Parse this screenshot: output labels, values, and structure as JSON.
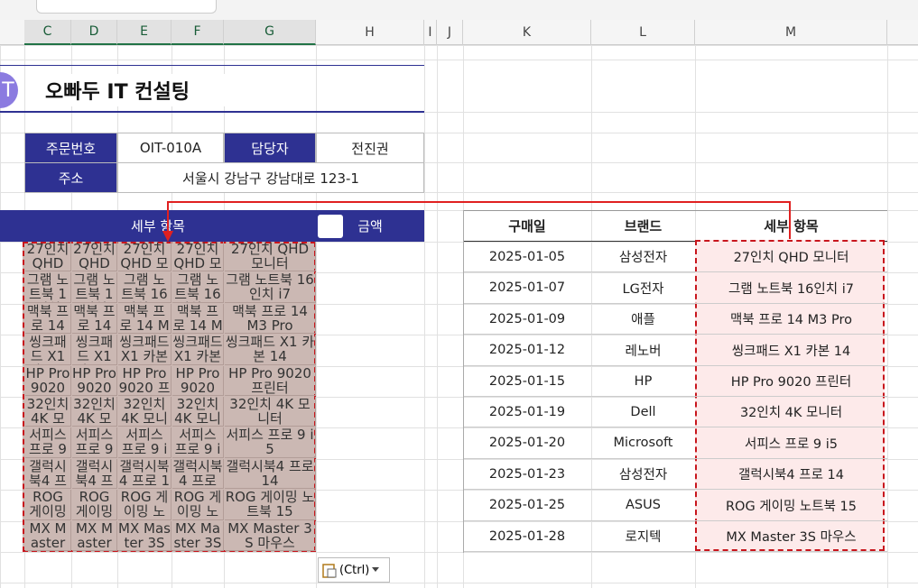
{
  "sheet": {
    "columns": [
      "C",
      "D",
      "E",
      "F",
      "G",
      "H",
      "I",
      "J",
      "K",
      "L",
      "M"
    ],
    "logo": "T",
    "title": "오빠두 IT 컨설팅",
    "order_info": {
      "order_no_label": "주문번호",
      "order_no": "OIT-010A",
      "manager_label": "담당자",
      "manager": "전진권",
      "address_label": "주소",
      "address": "서울시 강남구 강남대로 123-1"
    },
    "detail_header": "세부 항목",
    "amount_header": "금액",
    "purchase_table": {
      "headers": [
        "구매일",
        "브랜드",
        "세부 항목"
      ],
      "rows": [
        [
          "2025-01-05",
          "삼성전자",
          "27인치 QHD 모니터"
        ],
        [
          "2025-01-07",
          "LG전자",
          "그램 노트북 16인치 i7"
        ],
        [
          "2025-01-09",
          "애플",
          "맥북 프로 14 M3 Pro"
        ],
        [
          "2025-01-12",
          "레노버",
          "씽크패드 X1 카본 14"
        ],
        [
          "2025-01-15",
          "HP",
          "HP Pro 9020 프린터"
        ],
        [
          "2025-01-19",
          "Dell",
          "32인치 4K 모니터"
        ],
        [
          "2025-01-20",
          "Microsoft",
          "서피스 프로 9 i5"
        ],
        [
          "2025-01-23",
          "삼성전자",
          "갤럭시북4 프로 14"
        ],
        [
          "2025-01-25",
          "ASUS",
          "ROG 게이밍 노트북 15"
        ],
        [
          "2025-01-28",
          "로지텍",
          "MX Master 3S 마우스"
        ]
      ]
    },
    "paste_button": "(Ctrl)"
  }
}
